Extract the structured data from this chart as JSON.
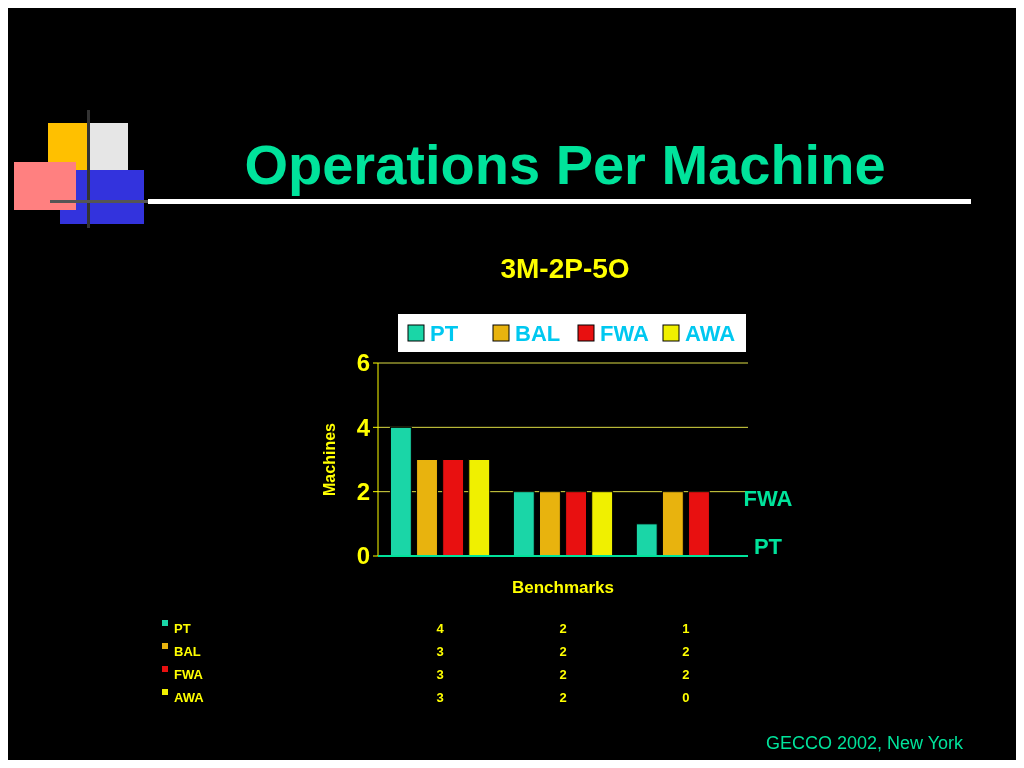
{
  "chart_data": {
    "type": "bar",
    "title": "Operations Per Machine",
    "subtitle": "3M-2P-5O",
    "xlabel": "Benchmarks",
    "ylabel": "Machines",
    "categories": [
      null,
      null,
      null
    ],
    "series": [
      {
        "name": "PT",
        "color": "#1ad6a7",
        "values": [
          4,
          2,
          1
        ]
      },
      {
        "name": "BAL",
        "color": "#e8b30e",
        "values": [
          3,
          2,
          2
        ]
      },
      {
        "name": "FWA",
        "color": "#e81010",
        "values": [
          3,
          2,
          2
        ]
      },
      {
        "name": "AWA",
        "color": "#f0f000",
        "values": [
          3,
          2,
          0
        ]
      }
    ],
    "ylim": [
      0,
      6
    ],
    "yticks": [
      0,
      2,
      4,
      6
    ],
    "grid": "y",
    "legend": "top",
    "data_labels": true,
    "annotations": [
      "FWA",
      "PT",
      "GECCO 2002, New York"
    ]
  }
}
